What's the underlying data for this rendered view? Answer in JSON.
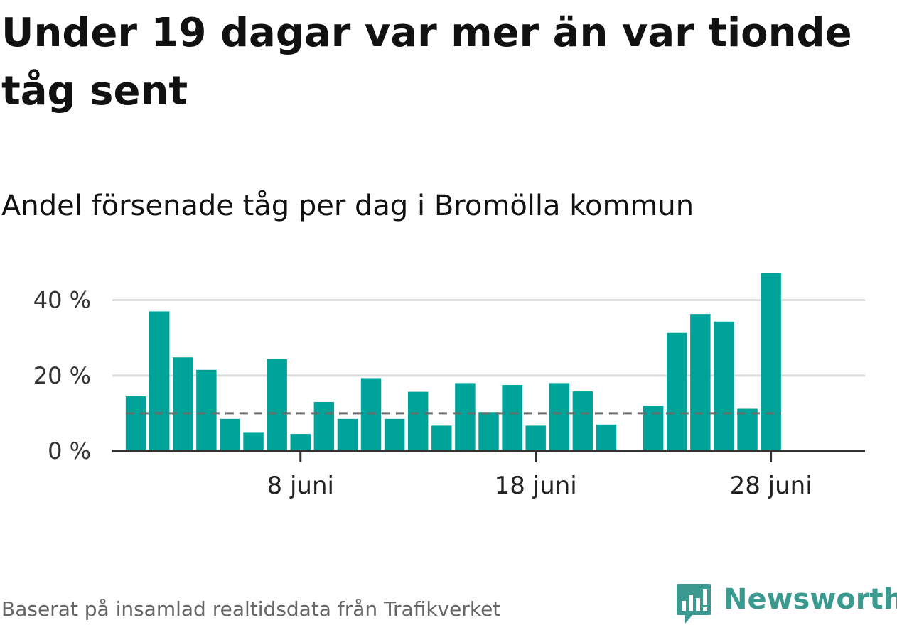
{
  "title": "Under 19 dagar var mer än var tionde tåg sent",
  "subtitle": "Andel försenade tåg per dag i Bromölla kommun",
  "source": "Baserat på insamlad realtidsdata från Trafikverket",
  "logo": {
    "text": "Newsworthy",
    "icon": "newsworthy-logo-icon",
    "color": "#3a9a8f"
  },
  "colors": {
    "bar": "#00a39a",
    "reference_line": "#6b6b6b",
    "grid": "#dddddd",
    "axis": "#333333"
  },
  "chart_data": {
    "type": "bar",
    "x_unit": "day of June",
    "x": [
      1,
      2,
      3,
      4,
      5,
      6,
      7,
      8,
      9,
      10,
      11,
      12,
      13,
      14,
      15,
      16,
      17,
      18,
      19,
      20,
      21,
      22,
      23,
      24,
      25,
      26,
      27,
      28,
      29,
      30
    ],
    "values": [
      14.5,
      37,
      24.8,
      21.5,
      8.5,
      5,
      24.3,
      4.5,
      13,
      8.5,
      19.3,
      8.5,
      15.7,
      6.7,
      18,
      10.3,
      17.5,
      6.7,
      18,
      15.8,
      7,
      null,
      12,
      31.3,
      36.3,
      34.3,
      11.2,
      47.2,
      null,
      null
    ],
    "reference_line": 10,
    "yticks": [
      0,
      20,
      40
    ],
    "ytick_labels": [
      "0 %",
      "20 %",
      "40 %"
    ],
    "xticks": [
      8,
      18,
      28
    ],
    "xtick_labels": [
      "8 juni",
      "18 juni",
      "28 juni"
    ],
    "ylim": [
      0,
      48
    ],
    "xlim": [
      0,
      32
    ],
    "grid": true,
    "legend": "none"
  }
}
